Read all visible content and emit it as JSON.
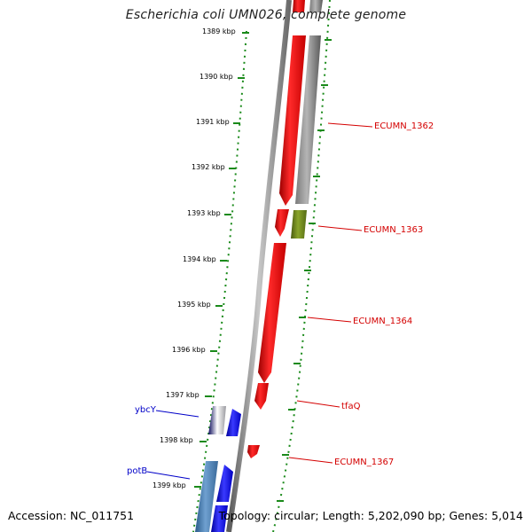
{
  "title": "Escherichia coli UMN026, complete genome",
  "kbp_labels": [
    "1389 kbp",
    "1390 kbp",
    "1391 kbp",
    "1392 kbp",
    "1393 kbp",
    "1394 kbp",
    "1395 kbp",
    "1396 kbp",
    "1397 kbp",
    "1398 kbp",
    "1399 kbp"
  ],
  "genes": [
    {
      "label": "ECUMN_1362",
      "color": "#d40000"
    },
    {
      "label": "ECUMN_1363",
      "color": "#d40000"
    },
    {
      "label": "ECUMN_1364",
      "color": "#d40000"
    },
    {
      "label": "tfaQ",
      "color": "#d40000"
    },
    {
      "label": "ECUMN_1367",
      "color": "#d40000"
    },
    {
      "label": "ybcY",
      "color": "#0000c8"
    },
    {
      "label": "potB",
      "color": "#0000c8"
    }
  ],
  "feature_colors": {
    "red": "#e00000",
    "gray": "#7f7f7f",
    "olive": "#6b8e23",
    "blue": "#0000ff",
    "steel": "#4682b4",
    "tick_green": "#1a8a1a"
  },
  "footer": {
    "accession": "Accession: NC_011751",
    "topology": "Topology: circular; Length: 5,202,090 bp; Genes: 5,014"
  }
}
